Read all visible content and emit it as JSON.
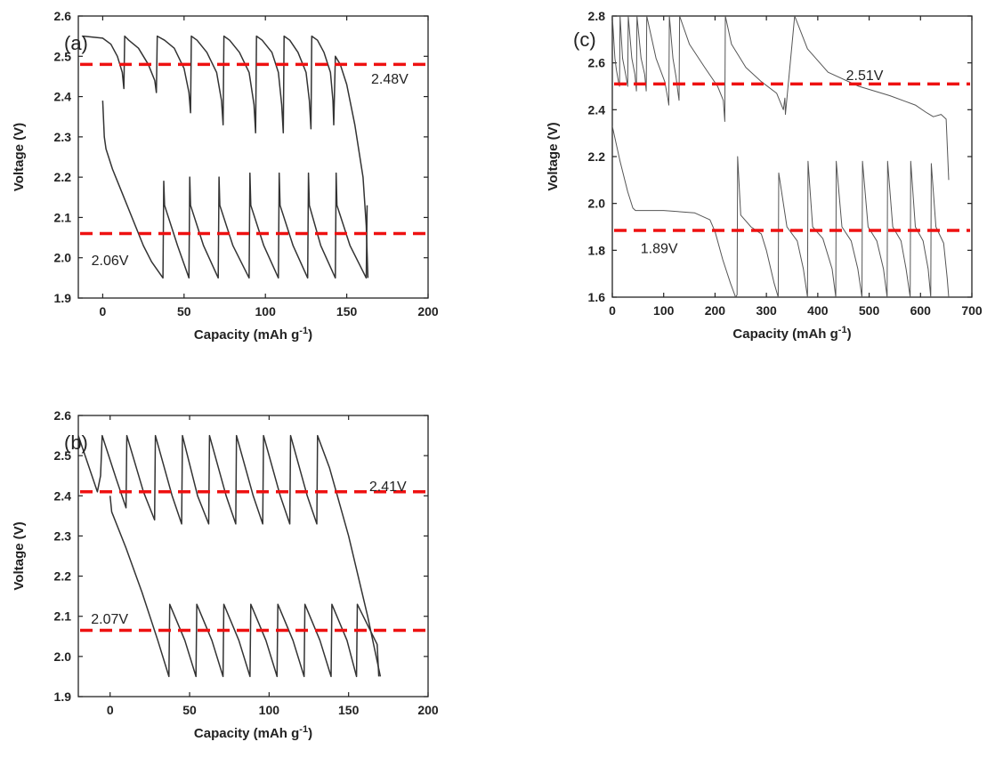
{
  "chart_data": [
    {
      "id": "a",
      "type": "line",
      "panel_label": "(a)",
      "xlabel": "Capacity (mAh g",
      "xlabel_sup": "-1",
      "xlabel_end": ")",
      "ylabel": "Voltage (V)",
      "xlim": [
        -15,
        200
      ],
      "ylim": [
        1.9,
        2.6
      ],
      "xticks": [
        0,
        50,
        100,
        150,
        200
      ],
      "yticks": [
        1.9,
        2.0,
        2.1,
        2.2,
        2.3,
        2.4,
        2.5,
        2.6
      ],
      "ytick_decimals": 1,
      "reference_lines": [
        {
          "y": 2.48,
          "label": "2.48V",
          "label_x": 165,
          "label_y": 2.445
        },
        {
          "y": 2.06,
          "label": "2.06V",
          "label_x": -7,
          "label_y": 1.995
        }
      ],
      "stroke": "thick",
      "series": [
        {
          "kind": "charge",
          "x": [
            -12,
            0,
            5,
            9,
            12,
            13,
            13.5,
            16,
            22,
            28,
            32,
            33,
            33.5,
            38,
            44,
            50,
            53,
            54,
            54.5,
            58,
            64,
            70,
            73,
            74,
            74.5,
            78,
            84,
            90,
            93,
            94,
            94.5,
            98,
            104,
            108,
            110,
            111,
            111.5,
            115,
            120,
            125,
            127,
            128,
            128.5,
            132,
            136,
            140,
            141.5,
            142,
            143,
            146,
            150,
            155,
            160,
            162,
            163
          ],
          "y": [
            2.55,
            2.545,
            2.53,
            2.5,
            2.46,
            2.42,
            2.55,
            2.54,
            2.52,
            2.48,
            2.44,
            2.41,
            2.55,
            2.54,
            2.52,
            2.47,
            2.41,
            2.36,
            2.55,
            2.54,
            2.51,
            2.46,
            2.39,
            2.33,
            2.55,
            2.54,
            2.51,
            2.46,
            2.38,
            2.31,
            2.55,
            2.54,
            2.51,
            2.46,
            2.38,
            2.31,
            2.55,
            2.54,
            2.51,
            2.46,
            2.39,
            2.32,
            2.55,
            2.54,
            2.51,
            2.46,
            2.39,
            2.33,
            2.5,
            2.48,
            2.43,
            2.33,
            2.2,
            2.08,
            1.95
          ]
        },
        {
          "kind": "discharge",
          "x": [
            0,
            1,
            2,
            6,
            12,
            18,
            25,
            30,
            37,
            37.5,
            38,
            46,
            53,
            53.5,
            54,
            62,
            71,
            71.5,
            72,
            80,
            90,
            90.5,
            91,
            99,
            108,
            108.5,
            109,
            117,
            126,
            126.5,
            127,
            134,
            143,
            143.5,
            144,
            152,
            162,
            162.5
          ],
          "y": [
            2.39,
            2.3,
            2.27,
            2.22,
            2.16,
            2.1,
            2.03,
            1.99,
            1.95,
            2.19,
            2.13,
            2.03,
            1.95,
            2.2,
            2.13,
            2.03,
            1.95,
            2.2,
            2.13,
            2.03,
            1.95,
            2.21,
            2.13,
            2.03,
            1.95,
            2.21,
            2.13,
            2.03,
            1.95,
            2.21,
            2.13,
            2.03,
            1.95,
            2.21,
            2.13,
            2.03,
            1.95,
            2.13
          ]
        }
      ]
    },
    {
      "id": "b",
      "type": "line",
      "panel_label": "(b)",
      "xlabel": "Capacity (mAh g",
      "xlabel_sup": "-1",
      "xlabel_end": ")",
      "ylabel": "Voltage (V)",
      "xlim": [
        -20,
        200
      ],
      "ylim": [
        1.9,
        2.6
      ],
      "xticks": [
        0,
        50,
        100,
        150,
        200
      ],
      "yticks": [
        1.9,
        2.0,
        2.1,
        2.2,
        2.3,
        2.4,
        2.5,
        2.6
      ],
      "ytick_decimals": 1,
      "reference_lines": [
        {
          "y": 2.41,
          "label": "2.41V",
          "label_x": 163,
          "label_y": 2.425
        },
        {
          "y": 2.065,
          "label": "2.07V",
          "label_x": -12,
          "label_y": 2.095
        }
      ],
      "stroke": "thick",
      "series": [
        {
          "kind": "charge",
          "x": [
            -20,
            -8,
            -6,
            -5,
            4,
            10,
            10.5,
            21,
            28,
            28.5,
            39,
            45,
            45.5,
            55,
            62,
            62.5,
            73,
            79,
            79.5,
            90,
            96,
            96.5,
            107,
            113,
            113.5,
            124,
            130,
            130.5,
            138,
            150,
            162,
            170
          ],
          "y": [
            2.55,
            2.41,
            2.45,
            2.55,
            2.44,
            2.37,
            2.55,
            2.41,
            2.34,
            2.55,
            2.4,
            2.33,
            2.55,
            2.4,
            2.33,
            2.55,
            2.4,
            2.33,
            2.55,
            2.4,
            2.33,
            2.55,
            2.4,
            2.33,
            2.55,
            2.4,
            2.33,
            2.55,
            2.47,
            2.3,
            2.1,
            1.95
          ]
        },
        {
          "kind": "discharge",
          "x": [
            0,
            1,
            10,
            20,
            30,
            37,
            37.5,
            47,
            54,
            54.5,
            64,
            71,
            71.5,
            81,
            88,
            88.5,
            98,
            105,
            105.5,
            115,
            122,
            122.5,
            132,
            139,
            139.5,
            149,
            155,
            155.5,
            163,
            168,
            169
          ],
          "y": [
            2.4,
            2.36,
            2.27,
            2.16,
            2.04,
            1.95,
            2.13,
            2.04,
            1.95,
            2.13,
            2.04,
            1.95,
            2.13,
            2.04,
            1.95,
            2.13,
            2.04,
            1.95,
            2.13,
            2.04,
            1.95,
            2.13,
            2.04,
            1.95,
            2.13,
            2.04,
            1.95,
            2.13,
            2.07,
            2.03,
            1.95
          ]
        }
      ]
    },
    {
      "id": "c",
      "type": "line",
      "panel_label": "(c)",
      "xlabel": "Capacity (mAh g",
      "xlabel_sup": "-1",
      "xlabel_end": ")",
      "ylabel": "Voltage (V)",
      "xlim": [
        0,
        700
      ],
      "ylim": [
        1.6,
        2.8
      ],
      "xticks": [
        0,
        100,
        200,
        300,
        400,
        500,
        600,
        700
      ],
      "yticks": [
        1.6,
        1.8,
        2.0,
        2.2,
        2.4,
        2.6,
        2.8
      ],
      "ytick_decimals": 1,
      "reference_lines": [
        {
          "y": 2.51,
          "label": "2.51V",
          "label_x": 455,
          "label_y": 2.55
        },
        {
          "y": 1.885,
          "label": "1.89V",
          "label_x": 55,
          "label_y": 1.81
        }
      ],
      "stroke": "thin",
      "series": [
        {
          "kind": "charge",
          "x": [
            0,
            5,
            8,
            12,
            14,
            15,
            20,
            26,
            30,
            31,
            38,
            44,
            47,
            48,
            56,
            63,
            66,
            67,
            85,
            102,
            108,
            110,
            111,
            118,
            124,
            128,
            130,
            131,
            150,
            180,
            205,
            216,
            219,
            220,
            232,
            260,
            290,
            320,
            333,
            336,
            337,
            355,
            380,
            420,
            480,
            540,
            590,
            610,
            625,
            640,
            650,
            655
          ],
          "y": [
            2.8,
            2.62,
            2.57,
            2.52,
            2.5,
            2.8,
            2.62,
            2.55,
            2.5,
            2.8,
            2.62,
            2.55,
            2.48,
            2.8,
            2.62,
            2.55,
            2.48,
            2.8,
            2.62,
            2.52,
            2.45,
            2.42,
            2.8,
            2.62,
            2.54,
            2.47,
            2.44,
            2.8,
            2.68,
            2.58,
            2.5,
            2.44,
            2.35,
            2.8,
            2.68,
            2.58,
            2.52,
            2.47,
            2.4,
            2.45,
            2.38,
            2.8,
            2.66,
            2.56,
            2.5,
            2.46,
            2.42,
            2.39,
            2.37,
            2.38,
            2.36,
            2.1
          ]
        },
        {
          "kind": "discharge",
          "x": [
            0,
            15,
            30,
            40,
            45,
            100,
            160,
            190,
            200,
            215,
            230,
            240,
            243,
            244,
            250,
            270,
            290,
            300,
            315,
            323,
            324,
            340,
            360,
            372,
            380,
            381,
            390,
            410,
            428,
            435,
            436,
            447,
            465,
            478,
            486,
            487,
            498,
            515,
            528,
            535,
            536,
            546,
            562,
            572,
            580,
            581,
            590,
            605,
            615,
            620,
            621,
            630,
            645,
            652,
            655
          ],
          "y": [
            2.33,
            2.18,
            2.05,
            1.98,
            1.97,
            1.97,
            1.96,
            1.93,
            1.88,
            1.76,
            1.66,
            1.6,
            1.61,
            2.2,
            1.95,
            1.9,
            1.87,
            1.8,
            1.66,
            1.6,
            2.13,
            1.9,
            1.84,
            1.72,
            1.6,
            2.18,
            1.9,
            1.85,
            1.72,
            1.6,
            2.18,
            1.9,
            1.84,
            1.72,
            1.6,
            2.18,
            1.9,
            1.84,
            1.72,
            1.6,
            2.18,
            1.9,
            1.84,
            1.72,
            1.6,
            2.18,
            1.9,
            1.84,
            1.72,
            1.6,
            2.17,
            1.9,
            1.83,
            1.68,
            1.6
          ]
        }
      ]
    }
  ]
}
